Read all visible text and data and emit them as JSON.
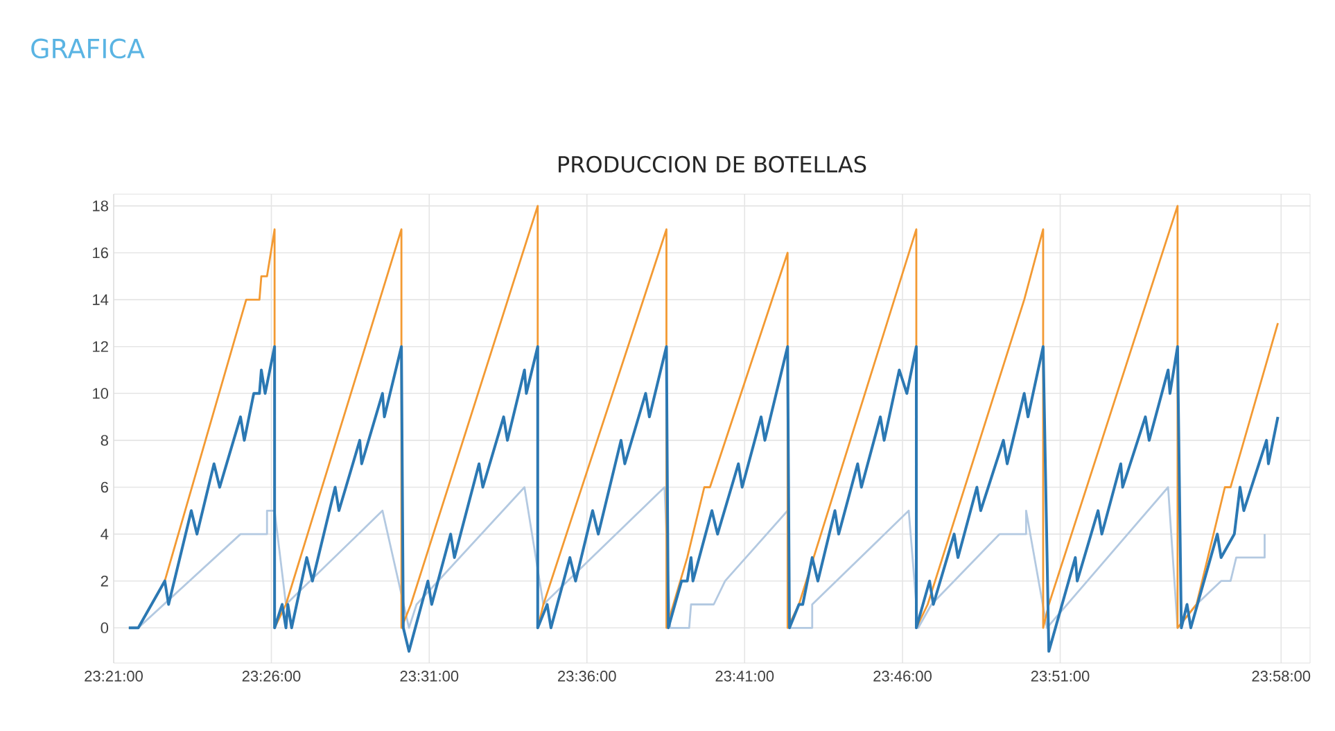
{
  "chart_data": {
    "type": "line",
    "title": "PRODUCCION DE BOTELLAS",
    "annotations": [
      "GRAFICA"
    ],
    "xlim": [
      23.35,
      23.982
    ],
    "ylim": [
      -1.5,
      18.5
    ],
    "xticks": [
      {
        "value": 23.35,
        "label": "23:21:00"
      },
      {
        "value": 23.4333,
        "label": "23:26:00"
      },
      {
        "value": 23.5167,
        "label": "23:31:00"
      },
      {
        "value": 23.6,
        "label": "23:36:00"
      },
      {
        "value": 23.6833,
        "label": "23:41:00"
      },
      {
        "value": 23.7667,
        "label": "23:46:00"
      },
      {
        "value": 23.85,
        "label": "23:51:00"
      },
      {
        "value": 23.9667,
        "label": "23:58:00"
      }
    ],
    "yticks": [
      0,
      2,
      4,
      6,
      8,
      10,
      12,
      14,
      16,
      18
    ],
    "grid": true,
    "marker": "none",
    "line_style": "solid",
    "series": [
      {
        "color": "#b3c9e1",
        "x": [
          23.358,
          23.363,
          23.417,
          23.431,
          23.431,
          23.435,
          23.441,
          23.492,
          23.506,
          23.51,
          23.567,
          23.577,
          23.641,
          23.644,
          23.654,
          23.655,
          23.667,
          23.673,
          23.706,
          23.707,
          23.719,
          23.719,
          23.77,
          23.775,
          23.782,
          23.818,
          23.832,
          23.832,
          23.843,
          23.907,
          23.912,
          23.922,
          23.935,
          23.94,
          23.943,
          23.958,
          23.958
        ],
        "values": [
          0,
          0,
          4,
          4,
          5,
          5,
          1,
          5,
          0,
          1,
          6,
          1,
          6,
          0,
          0,
          1,
          1,
          2,
          5,
          0,
          0,
          1,
          5,
          0,
          1,
          4,
          4,
          5,
          0,
          6,
          0,
          1,
          2,
          2,
          3,
          3,
          4
        ]
      },
      {
        "color": "#f39a33",
        "x": [
          23.358,
          23.363,
          23.377,
          23.42,
          23.427,
          23.428,
          23.431,
          23.435,
          23.435,
          23.441,
          23.502,
          23.502,
          23.507,
          23.574,
          23.574,
          23.577,
          23.642,
          23.642,
          23.653,
          23.662,
          23.665,
          23.706,
          23.706,
          23.712,
          23.774,
          23.774,
          23.78,
          23.831,
          23.841,
          23.841,
          23.844,
          23.912,
          23.912,
          23.922,
          23.937,
          23.94,
          23.965
        ],
        "values": [
          0,
          0,
          2,
          14,
          14,
          15,
          15,
          17,
          0,
          1,
          17,
          0,
          1,
          18,
          0,
          1,
          17,
          0,
          3,
          6,
          6,
          16,
          0,
          1,
          17,
          0,
          1,
          14,
          17,
          0,
          1,
          18,
          0,
          1,
          6,
          6,
          13
        ]
      },
      {
        "color": "#2b78b3",
        "x": [
          23.358,
          23.363,
          23.377,
          23.379,
          23.391,
          23.394,
          23.403,
          23.406,
          23.417,
          23.419,
          23.424,
          23.427,
          23.428,
          23.43,
          23.435,
          23.435,
          23.439,
          23.441,
          23.442,
          23.444,
          23.452,
          23.455,
          23.467,
          23.469,
          23.48,
          23.481,
          23.492,
          23.493,
          23.502,
          23.503,
          23.506,
          23.516,
          23.518,
          23.528,
          23.53,
          23.543,
          23.545,
          23.556,
          23.558,
          23.567,
          23.568,
          23.574,
          23.574,
          23.579,
          23.581,
          23.591,
          23.594,
          23.603,
          23.606,
          23.618,
          23.62,
          23.631,
          23.633,
          23.642,
          23.643,
          23.65,
          23.653,
          23.655,
          23.656,
          23.666,
          23.669,
          23.68,
          23.682,
          23.692,
          23.694,
          23.706,
          23.707,
          23.712,
          23.714,
          23.719,
          23.722,
          23.731,
          23.733,
          23.743,
          23.745,
          23.755,
          23.757,
          23.765,
          23.769,
          23.774,
          23.774,
          23.781,
          23.783,
          23.794,
          23.796,
          23.806,
          23.808,
          23.82,
          23.822,
          23.831,
          23.833,
          23.841,
          23.844,
          23.858,
          23.859,
          23.87,
          23.872,
          23.882,
          23.883,
          23.895,
          23.897,
          23.907,
          23.908,
          23.912,
          23.914,
          23.917,
          23.919,
          23.933,
          23.935,
          23.942,
          23.945,
          23.947,
          23.959,
          23.96,
          23.965
        ],
        "values": [
          0,
          0,
          2,
          1,
          5,
          4,
          7,
          6,
          9,
          8,
          10,
          10,
          11,
          10,
          12,
          0,
          1,
          0,
          1,
          0,
          3,
          2,
          6,
          5,
          8,
          7,
          10,
          9,
          12,
          0,
          -1,
          2,
          1,
          4,
          3,
          7,
          6,
          9,
          8,
          11,
          10,
          12,
          0,
          1,
          0,
          3,
          2,
          5,
          4,
          8,
          7,
          10,
          9,
          12,
          0,
          2,
          2,
          3,
          2,
          5,
          4,
          7,
          6,
          9,
          8,
          12,
          0,
          1,
          1,
          3,
          2,
          5,
          4,
          7,
          6,
          9,
          8,
          11,
          10,
          12,
          0,
          2,
          1,
          4,
          3,
          6,
          5,
          8,
          7,
          10,
          9,
          12,
          -1,
          3,
          2,
          5,
          4,
          7,
          6,
          9,
          8,
          11,
          10,
          12,
          0,
          1,
          0,
          4,
          3,
          4,
          6,
          5,
          8,
          7,
          9
        ]
      }
    ]
  }
}
